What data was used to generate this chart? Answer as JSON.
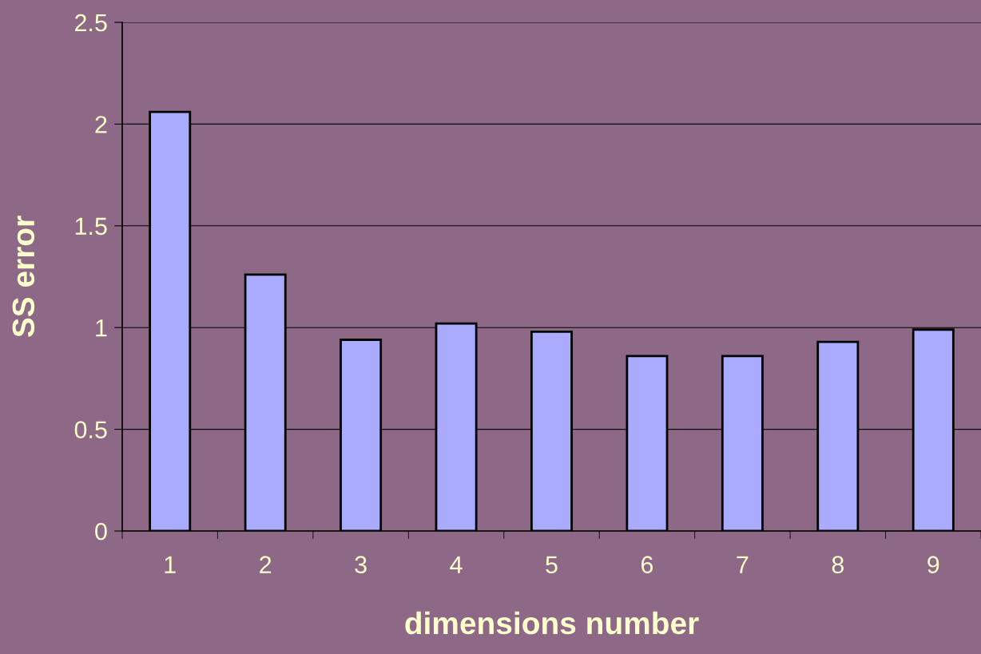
{
  "chart_data": {
    "type": "bar",
    "xlabel": "dimensions number",
    "ylabel": "SS error",
    "categories": [
      "1",
      "2",
      "3",
      "4",
      "5",
      "6",
      "7",
      "8",
      "9"
    ],
    "values": [
      2.06,
      1.26,
      0.94,
      1.02,
      0.98,
      0.86,
      0.86,
      0.93,
      0.99
    ],
    "color": "#aaaaff",
    "ylim": [
      0,
      2.5
    ],
    "yticks": [
      0,
      0.5,
      1,
      1.5,
      2,
      2.5
    ],
    "grid": "y"
  }
}
